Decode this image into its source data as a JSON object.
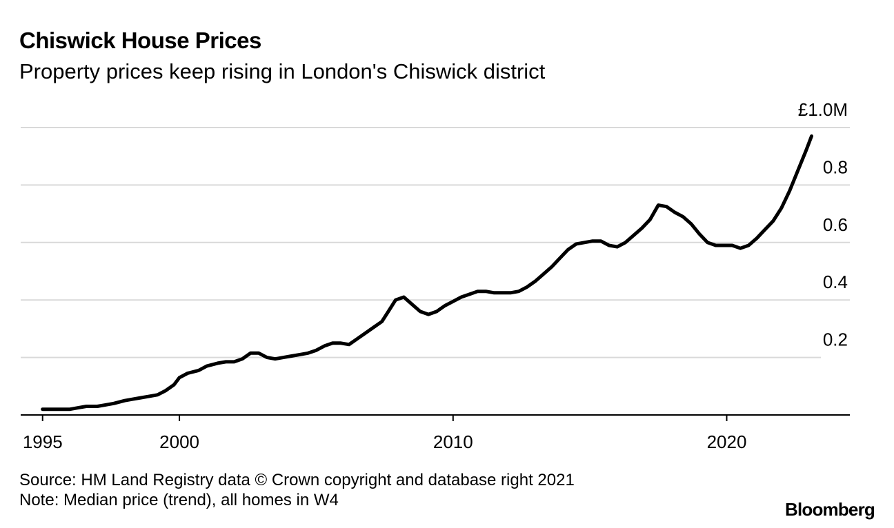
{
  "title": "Chiswick House Prices",
  "subtitle": "Property prices keep rising in London's Chiswick district",
  "source": "Source: HM Land Registry data © Crown copyright and database right 2021",
  "note": "Note: Median price (trend), all homes in W4",
  "brand": "Bloomberg",
  "colors": {
    "line": "#000000",
    "grid": "#d9d9d9",
    "axis": "#000000"
  },
  "chart_data": {
    "type": "line",
    "title": "Chiswick House Prices",
    "subtitle": "Property prices keep rising in London's Chiswick district",
    "xlabel": "",
    "ylabel": "",
    "xlim": [
      1994.2,
      2024.5
    ],
    "ylim": [
      0,
      1.06
    ],
    "x_ticks": [
      1995,
      2000,
      2010,
      2020
    ],
    "x_tick_labels": [
      "1995",
      "2000",
      "2010",
      "2020"
    ],
    "y_ticks": [
      0.2,
      0.4,
      0.6,
      0.8,
      1.0
    ],
    "y_tick_labels": [
      "0.2",
      "0.4",
      "0.6",
      "0.8",
      "£1.0M"
    ],
    "grid": "horizontal",
    "series": [
      {
        "x": [
          1995.0,
          1995.3,
          1995.6,
          1996.0,
          1996.3,
          1996.6,
          1997.0,
          1997.3,
          1997.6,
          1998.0,
          1998.3,
          1998.6,
          1998.9,
          1999.2,
          1999.5,
          1999.8,
          2000.0,
          2000.3,
          2000.7,
          2001.0,
          2001.4,
          2001.7,
          2002.0,
          2002.3,
          2002.6,
          2002.9,
          2003.2,
          2003.5,
          2003.8,
          2004.1,
          2004.4,
          2004.7,
          2005.0,
          2005.3,
          2005.6,
          2005.9,
          2006.2,
          2006.5,
          2006.8,
          2007.1,
          2007.4,
          2007.6,
          2007.9,
          2008.2,
          2008.5,
          2008.8,
          2009.1,
          2009.4,
          2009.7,
          2010.0,
          2010.3,
          2010.6,
          2010.9,
          2011.2,
          2011.5,
          2011.8,
          2012.1,
          2012.4,
          2012.7,
          2013.0,
          2013.3,
          2013.6,
          2013.9,
          2014.2,
          2014.5,
          2014.8,
          2015.1,
          2015.4,
          2015.7,
          2016.0,
          2016.3,
          2016.6,
          2016.9,
          2017.2,
          2017.5,
          2017.8,
          2018.1,
          2018.4,
          2018.7,
          2019.0,
          2019.3,
          2019.6,
          2019.9,
          2020.2,
          2020.5,
          2020.8,
          2021.1,
          2021.4,
          2021.7,
          2022.0,
          2022.3,
          2022.6,
          2022.9,
          2023.1
        ],
        "values": [
          0.02,
          0.02,
          0.02,
          0.02,
          0.025,
          0.03,
          0.03,
          0.035,
          0.04,
          0.05,
          0.055,
          0.06,
          0.065,
          0.07,
          0.085,
          0.105,
          0.13,
          0.145,
          0.155,
          0.17,
          0.18,
          0.185,
          0.185,
          0.195,
          0.215,
          0.215,
          0.2,
          0.195,
          0.2,
          0.205,
          0.21,
          0.215,
          0.225,
          0.24,
          0.25,
          0.25,
          0.245,
          0.265,
          0.285,
          0.305,
          0.325,
          0.355,
          0.4,
          0.41,
          0.385,
          0.36,
          0.35,
          0.36,
          0.38,
          0.395,
          0.41,
          0.42,
          0.43,
          0.43,
          0.425,
          0.425,
          0.425,
          0.43,
          0.445,
          0.465,
          0.49,
          0.515,
          0.545,
          0.575,
          0.595,
          0.6,
          0.605,
          0.605,
          0.59,
          0.585,
          0.6,
          0.625,
          0.65,
          0.68,
          0.73,
          0.725,
          0.705,
          0.69,
          0.665,
          0.63,
          0.6,
          0.59,
          0.59,
          0.59,
          0.58,
          0.59,
          0.615,
          0.645,
          0.675,
          0.72,
          0.78,
          0.85,
          0.92,
          0.97
        ]
      }
    ]
  }
}
